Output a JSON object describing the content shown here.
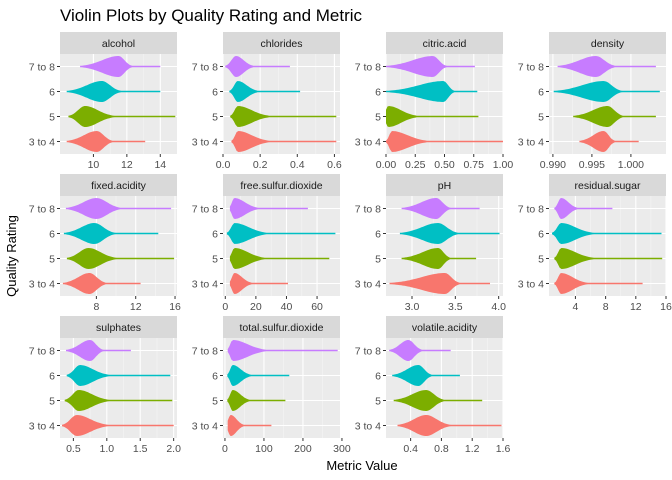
{
  "chart_data": {
    "type": "violin",
    "title": "Violin Plots by Quality Rating and Metric",
    "xlabel": "Metric Value",
    "ylabel": "Quality Rating",
    "categories": [
      "3 to 4",
      "5",
      "6",
      "7 to 8"
    ],
    "colors": {
      "3 to 4": "#F8766D",
      "5": "#7CAE00",
      "6": "#00BFC4",
      "7 to 8": "#C77CFF"
    },
    "panel_background": "#EBEBEB",
    "strip_background": "#D9D9D9",
    "grid": true,
    "facets": [
      {
        "name": "alcohol",
        "xlim": [
          8.0,
          15.0
        ],
        "xticks": [
          10,
          12,
          14
        ],
        "xtick_labels": [
          "10",
          "12",
          "14"
        ],
        "violins": {
          "3 to 4": {
            "min": 8.4,
            "max": 13.1,
            "mode": 10.2
          },
          "5": {
            "min": 8.5,
            "max": 14.9,
            "mode": 9.5
          },
          "6": {
            "min": 8.4,
            "max": 14.0,
            "mode": 10.5
          },
          "7 to 8": {
            "min": 9.2,
            "max": 14.0,
            "mode": 11.5
          }
        }
      },
      {
        "name": "chlorides",
        "xlim": [
          0.0,
          0.63
        ],
        "xticks": [
          0.0,
          0.2,
          0.4,
          0.6
        ],
        "xtick_labels": [
          "0.0",
          "0.2",
          "0.4",
          "0.6"
        ],
        "violins": {
          "3 to 4": {
            "min": 0.045,
            "max": 0.61,
            "mode": 0.08
          },
          "5": {
            "min": 0.039,
            "max": 0.61,
            "mode": 0.08
          },
          "6": {
            "min": 0.034,
            "max": 0.415,
            "mode": 0.08
          },
          "7 to 8": {
            "min": 0.012,
            "max": 0.36,
            "mode": 0.07
          }
        }
      },
      {
        "name": "citric.acid",
        "xlim": [
          0.0,
          1.0
        ],
        "xticks": [
          0.0,
          0.25,
          0.5,
          0.75,
          1.0
        ],
        "xtick_labels": [
          "0.00",
          "0.25",
          "0.50",
          "0.75",
          "1.00"
        ],
        "violins": {
          "3 to 4": {
            "min": 0.0,
            "max": 1.0,
            "mode": 0.05
          },
          "5": {
            "min": 0.0,
            "max": 0.79,
            "mode": 0.02
          },
          "6": {
            "min": 0.0,
            "max": 0.78,
            "mode": 0.49
          },
          "7 to 8": {
            "min": 0.0,
            "max": 0.76,
            "mode": 0.4
          }
        }
      },
      {
        "name": "density",
        "xlim": [
          0.9895,
          1.0045
        ],
        "xticks": [
          0.99,
          0.995,
          1.0
        ],
        "xtick_labels": [
          "0.990",
          "0.995",
          "1.000"
        ],
        "violins": {
          "3 to 4": {
            "min": 0.9934,
            "max": 1.001,
            "mode": 0.9965
          },
          "5": {
            "min": 0.9926,
            "max": 1.0032,
            "mode": 0.997
          },
          "6": {
            "min": 0.9901,
            "max": 1.0037,
            "mode": 0.9965
          },
          "7 to 8": {
            "min": 0.9906,
            "max": 1.0032,
            "mode": 0.9955
          }
        }
      },
      {
        "name": "fixed.acidity",
        "xlim": [
          4.3,
          16.2
        ],
        "xticks": [
          8,
          12,
          16
        ],
        "xtick_labels": [
          "8",
          "12",
          "16"
        ],
        "violins": {
          "3 to 4": {
            "min": 4.6,
            "max": 12.5,
            "mode": 7.3
          },
          "5": {
            "min": 5.0,
            "max": 15.9,
            "mode": 7.2
          },
          "6": {
            "min": 4.7,
            "max": 14.3,
            "mode": 7.8
          },
          "7 to 8": {
            "min": 4.9,
            "max": 15.6,
            "mode": 8.0
          }
        }
      },
      {
        "name": "free.sulfur.dioxide",
        "xlim": [
          -1.5,
          75.0
        ],
        "xticks": [
          0,
          20,
          40,
          60
        ],
        "xtick_labels": [
          "0",
          "20",
          "40",
          "60"
        ],
        "violins": {
          "3 to 4": {
            "min": 3,
            "max": 41,
            "mode": 6
          },
          "5": {
            "min": 3,
            "max": 68,
            "mode": 6
          },
          "6": {
            "min": 1,
            "max": 72,
            "mode": 6
          },
          "7 to 8": {
            "min": 3,
            "max": 54,
            "mode": 6
          }
        }
      },
      {
        "name": "pH",
        "xlim": [
          2.7,
          4.05
        ],
        "xticks": [
          3.0,
          3.5,
          4.0
        ],
        "xtick_labels": [
          "3.0",
          "3.5",
          "4.0"
        ],
        "violins": {
          "3 to 4": {
            "min": 2.74,
            "max": 3.9,
            "mode": 3.38
          },
          "5": {
            "min": 2.88,
            "max": 3.74,
            "mode": 3.3
          },
          "6": {
            "min": 2.86,
            "max": 4.01,
            "mode": 3.3
          },
          "7 to 8": {
            "min": 2.88,
            "max": 3.78,
            "mode": 3.28
          }
        }
      },
      {
        "name": "residual.sugar",
        "xlim": [
          0.5,
          16.0
        ],
        "xticks": [
          4,
          8,
          12,
          16
        ],
        "xtick_labels": [
          "4",
          "8",
          "12",
          "16"
        ],
        "violins": {
          "3 to 4": {
            "min": 1.2,
            "max": 12.9,
            "mode": 2.1
          },
          "5": {
            "min": 1.2,
            "max": 15.5,
            "mode": 2.1
          },
          "6": {
            "min": 0.9,
            "max": 15.4,
            "mode": 2.1
          },
          "7 to 8": {
            "min": 1.2,
            "max": 8.9,
            "mode": 2.1
          }
        }
      },
      {
        "name": "sulphates",
        "xlim": [
          0.3,
          2.05
        ],
        "xticks": [
          0.5,
          1.0,
          1.5,
          2.0
        ],
        "xtick_labels": [
          "0.5",
          "1.0",
          "1.5",
          "2.0"
        ],
        "violins": {
          "3 to 4": {
            "min": 0.33,
            "max": 2.0,
            "mode": 0.55
          },
          "5": {
            "min": 0.37,
            "max": 1.98,
            "mode": 0.58
          },
          "6": {
            "min": 0.4,
            "max": 1.95,
            "mode": 0.6
          },
          "7 to 8": {
            "min": 0.39,
            "max": 1.36,
            "mode": 0.75
          }
        }
      },
      {
        "name": "total.sulfur.dioxide",
        "xlim": [
          -5.0,
          295.0
        ],
        "xticks": [
          0,
          100,
          200,
          300
        ],
        "xtick_labels": [
          "0",
          "100",
          "200",
          "300"
        ],
        "violins": {
          "3 to 4": {
            "min": 7,
            "max": 119,
            "mode": 15
          },
          "5": {
            "min": 6,
            "max": 155,
            "mode": 20
          },
          "6": {
            "min": 6,
            "max": 165,
            "mode": 20
          },
          "7 to 8": {
            "min": 7,
            "max": 289,
            "mode": 20
          }
        }
      },
      {
        "name": "volatile.acidity",
        "xlim": [
          0.08,
          1.6
        ],
        "xticks": [
          0.4,
          0.8,
          1.2,
          1.6
        ],
        "xtick_labels": [
          "0.4",
          "0.8",
          "1.2",
          "1.6"
        ],
        "violins": {
          "3 to 4": {
            "min": 0.23,
            "max": 1.58,
            "mode": 0.6
          },
          "5": {
            "min": 0.18,
            "max": 1.33,
            "mode": 0.6
          },
          "6": {
            "min": 0.16,
            "max": 1.04,
            "mode": 0.5
          },
          "7 to 8": {
            "min": 0.12,
            "max": 0.92,
            "mode": 0.37
          }
        }
      }
    ]
  }
}
